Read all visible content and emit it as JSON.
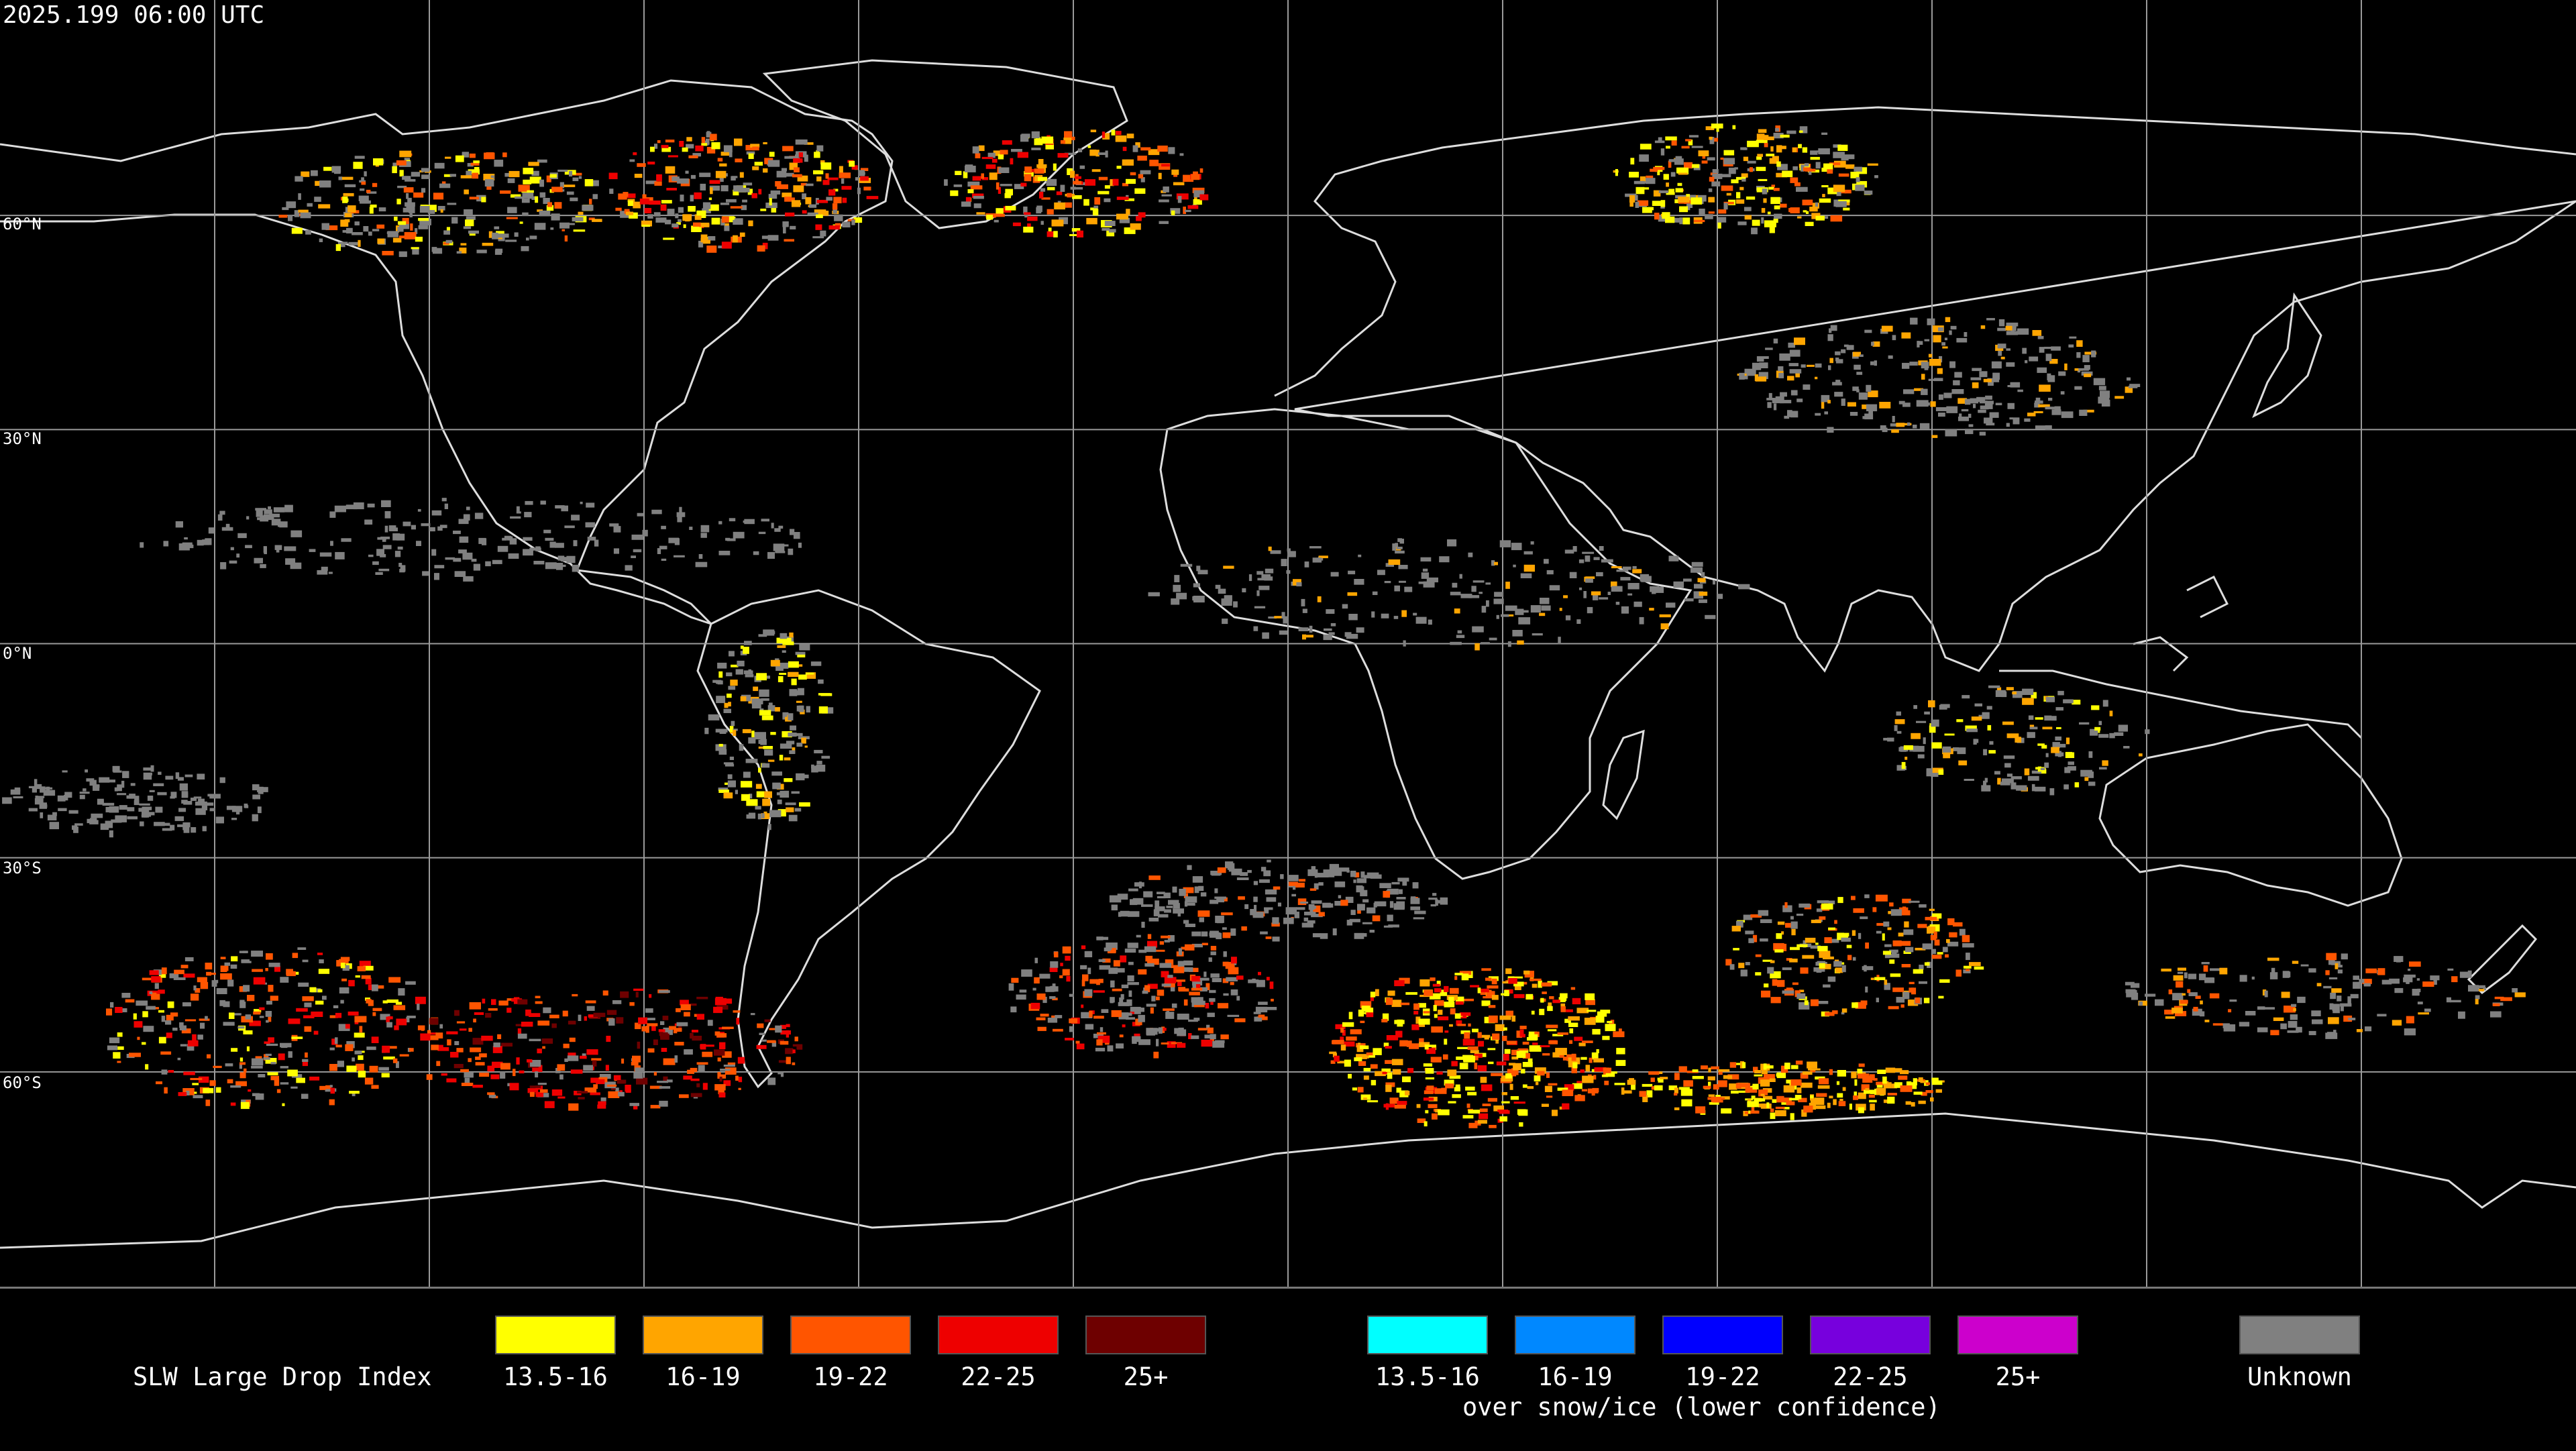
{
  "header": {
    "timestamp": "2025.199 06:00 UTC"
  },
  "map": {
    "type": "equirectangular world map",
    "graticule_interval_deg": 30,
    "lat_labels": [
      "60°N",
      "30°N",
      "0°N",
      "30°S",
      "60°S"
    ]
  },
  "legend": {
    "title": "SLW Large Drop Index",
    "main_bins": [
      {
        "label": "13.5-16",
        "color": "#ffff00"
      },
      {
        "label": "16-19",
        "color": "#ffa500"
      },
      {
        "label": "19-22",
        "color": "#ff5500"
      },
      {
        "label": "22-25",
        "color": "#ee0000"
      },
      {
        "label": "25+",
        "color": "#6e0000"
      }
    ],
    "snow_bins": [
      {
        "label": "13.5-16",
        "color": "#00ffff"
      },
      {
        "label": "16-19",
        "color": "#0088ff"
      },
      {
        "label": "19-22",
        "color": "#0000ff"
      },
      {
        "label": "22-25",
        "color": "#7700dd"
      },
      {
        "label": "25+",
        "color": "#cc00cc"
      }
    ],
    "snow_caption": "over snow/ice (lower confidence)",
    "unknown": {
      "label": "Unknown",
      "color": "#808080"
    }
  }
}
